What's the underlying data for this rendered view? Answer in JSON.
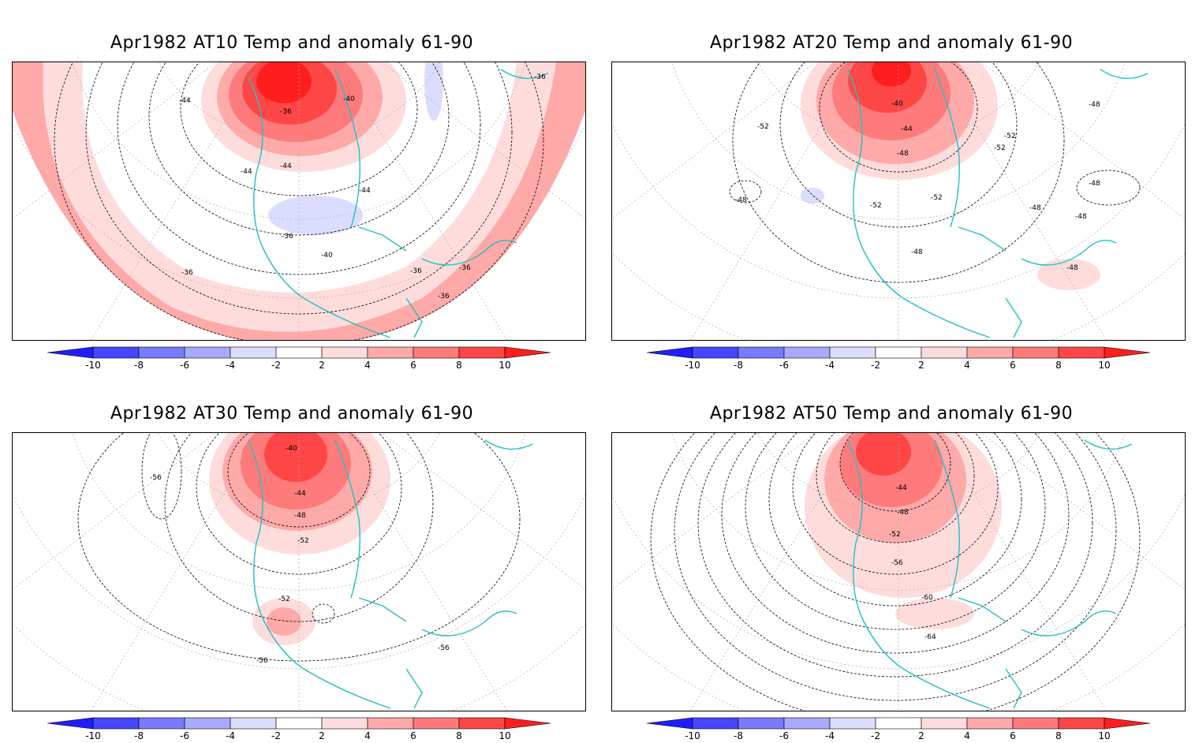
{
  "panels": [
    {
      "title": "Apr1982 AT10 Temp and anomaly 61-90",
      "contour_labels": [
        "-44",
        "-36",
        "-40",
        "-44",
        "-44",
        "-44",
        "-36",
        "-40",
        "-36",
        "-36",
        "-36",
        "-36",
        "-36"
      ]
    },
    {
      "title": "Apr1982 AT20 Temp and anomaly 61-90",
      "contour_labels": [
        "-40",
        "-44",
        "-48",
        "-52",
        "-52",
        "-52",
        "-48",
        "-48",
        "-48",
        "-48",
        "-48",
        "-52",
        "-52",
        "-48",
        "-48"
      ]
    },
    {
      "title": "Apr1982 AT30 Temp and anomaly 61-90",
      "contour_labels": [
        "-40",
        "-44",
        "-48",
        "-52",
        "-56",
        "-52",
        "-56",
        "-56"
      ]
    },
    {
      "title": "Apr1982 AT50 Temp and anomaly 61-90",
      "contour_labels": [
        "-44",
        "-48",
        "-52",
        "-56",
        "-60",
        "-64"
      ]
    }
  ],
  "colorbar": {
    "ticks": [
      "-10",
      "-8",
      "-6",
      "-4",
      "-2",
      "2",
      "4",
      "6",
      "8",
      "10"
    ],
    "colors": [
      "#1e1eff",
      "#4646ff",
      "#7a7aff",
      "#a9a9ff",
      "#dcdcff",
      "#ffffff",
      "#ffdcdc",
      "#ffa9a9",
      "#ff7a7a",
      "#ff4646",
      "#ff1e1e"
    ]
  },
  "coastline_color": "#22c0c0"
}
